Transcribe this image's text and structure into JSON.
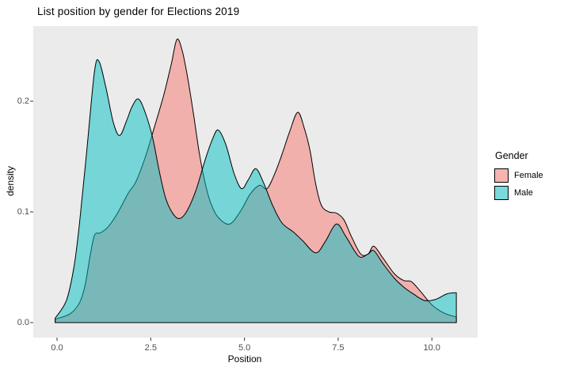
{
  "title": "List position by gender for Elections 2019",
  "colors": {
    "panel_background": "#EBEBEB",
    "outer_background": "#FFFFFF",
    "female_base": "#F8766D",
    "male_base": "#00BFC4",
    "female_fill": "rgba(248,118,109,0.5)",
    "male_fill": "rgba(0,191,196,0.5)",
    "curve_outline": "#000000",
    "axis_text": "#4D4D4D"
  },
  "chart_data": {
    "type": "area",
    "subtype": "overlapping-density-kde",
    "title": "List position by gender for Elections 2019",
    "xlabel": "Position",
    "ylabel": "density",
    "xlim": [
      -0.63,
      11.2
    ],
    "ylim": [
      -0.014,
      0.268
    ],
    "grid": "off",
    "x_ticks": [
      "0.0",
      "2.5",
      "5.0",
      "7.5",
      "10.0"
    ],
    "y_ticks": [
      "0.0",
      "0.1",
      "0.2"
    ],
    "legend": {
      "title": "Gender",
      "position": "right",
      "entries": [
        {
          "label": "Female",
          "color": "#F8766D"
        },
        {
          "label": "Male",
          "color": "#00BFC4"
        }
      ]
    },
    "series": [
      {
        "name": "Female",
        "fill": "rgba(248,118,109,0.5)",
        "stroke": "#000000",
        "points": [
          [
            -0.05,
            0.003
          ],
          [
            0.35,
            0.008
          ],
          [
            0.6,
            0.018
          ],
          [
            0.75,
            0.034
          ],
          [
            0.88,
            0.06
          ],
          [
            1.0,
            0.079
          ],
          [
            1.15,
            0.081
          ],
          [
            1.35,
            0.086
          ],
          [
            1.6,
            0.098
          ],
          [
            1.9,
            0.117
          ],
          [
            2.1,
            0.127
          ],
          [
            2.35,
            0.149
          ],
          [
            2.6,
            0.177
          ],
          [
            2.85,
            0.206
          ],
          [
            3.05,
            0.234
          ],
          [
            3.2,
            0.256
          ],
          [
            3.35,
            0.244
          ],
          [
            3.5,
            0.218
          ],
          [
            3.65,
            0.186
          ],
          [
            3.8,
            0.152
          ],
          [
            3.95,
            0.126
          ],
          [
            4.1,
            0.108
          ],
          [
            4.3,
            0.095
          ],
          [
            4.6,
            0.089
          ],
          [
            4.9,
            0.101
          ],
          [
            5.15,
            0.116
          ],
          [
            5.4,
            0.124
          ],
          [
            5.6,
            0.121
          ],
          [
            5.8,
            0.134
          ],
          [
            6.0,
            0.152
          ],
          [
            6.2,
            0.172
          ],
          [
            6.42,
            0.19
          ],
          [
            6.6,
            0.175
          ],
          [
            6.75,
            0.155
          ],
          [
            6.9,
            0.125
          ],
          [
            7.05,
            0.106
          ],
          [
            7.25,
            0.1
          ],
          [
            7.45,
            0.099
          ],
          [
            7.65,
            0.093
          ],
          [
            7.85,
            0.078
          ],
          [
            8.1,
            0.062
          ],
          [
            8.3,
            0.062
          ],
          [
            8.45,
            0.069
          ],
          [
            8.7,
            0.058
          ],
          [
            9.0,
            0.044
          ],
          [
            9.25,
            0.038
          ],
          [
            9.45,
            0.037
          ],
          [
            9.7,
            0.028
          ],
          [
            10.0,
            0.016
          ],
          [
            10.3,
            0.009
          ],
          [
            10.65,
            0.005
          ]
        ]
      },
      {
        "name": "Male",
        "fill": "rgba(0,191,196,0.5)",
        "stroke": "#000000",
        "points": [
          [
            -0.05,
            0.004
          ],
          [
            0.25,
            0.02
          ],
          [
            0.45,
            0.05
          ],
          [
            0.6,
            0.09
          ],
          [
            0.8,
            0.158
          ],
          [
            1.0,
            0.227
          ],
          [
            1.12,
            0.236
          ],
          [
            1.3,
            0.213
          ],
          [
            1.5,
            0.181
          ],
          [
            1.67,
            0.169
          ],
          [
            1.85,
            0.182
          ],
          [
            2.0,
            0.195
          ],
          [
            2.17,
            0.202
          ],
          [
            2.35,
            0.19
          ],
          [
            2.55,
            0.167
          ],
          [
            2.72,
            0.138
          ],
          [
            2.9,
            0.112
          ],
          [
            3.1,
            0.098
          ],
          [
            3.27,
            0.094
          ],
          [
            3.45,
            0.1
          ],
          [
            3.7,
            0.119
          ],
          [
            3.95,
            0.147
          ],
          [
            4.15,
            0.166
          ],
          [
            4.3,
            0.174
          ],
          [
            4.5,
            0.161
          ],
          [
            4.72,
            0.135
          ],
          [
            4.92,
            0.121
          ],
          [
            5.1,
            0.129
          ],
          [
            5.3,
            0.139
          ],
          [
            5.5,
            0.127
          ],
          [
            5.75,
            0.106
          ],
          [
            6.0,
            0.09
          ],
          [
            6.3,
            0.082
          ],
          [
            6.55,
            0.074
          ],
          [
            6.9,
            0.063
          ],
          [
            7.15,
            0.073
          ],
          [
            7.45,
            0.089
          ],
          [
            7.7,
            0.078
          ],
          [
            7.95,
            0.064
          ],
          [
            8.1,
            0.059
          ],
          [
            8.3,
            0.062
          ],
          [
            8.45,
            0.065
          ],
          [
            8.7,
            0.053
          ],
          [
            9.0,
            0.04
          ],
          [
            9.25,
            0.032
          ],
          [
            9.5,
            0.026
          ],
          [
            9.8,
            0.02
          ],
          [
            10.1,
            0.021
          ],
          [
            10.4,
            0.026
          ],
          [
            10.65,
            0.027
          ]
        ]
      }
    ]
  }
}
